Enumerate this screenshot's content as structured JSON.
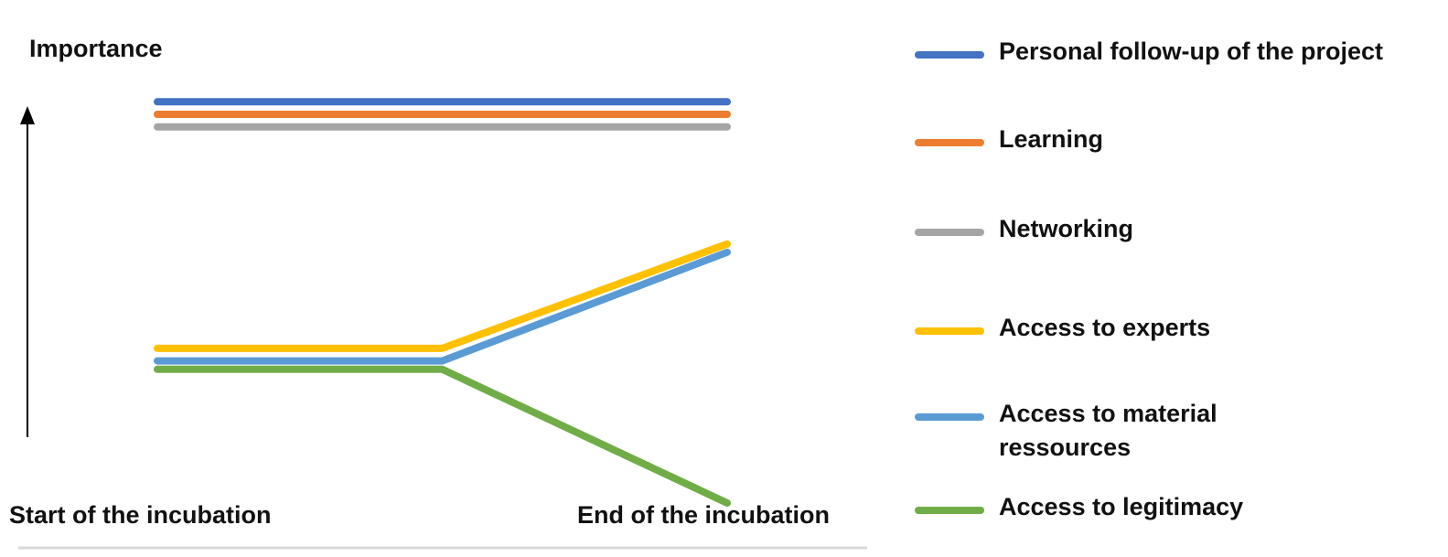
{
  "chart_data": {
    "type": "line",
    "title": "",
    "ylabel": "Importance",
    "x_start_label": "Start of the incubation",
    "x_end_label": "End of the incubation",
    "x": [
      0,
      0.5,
      1
    ],
    "ylim": [
      0,
      1
    ],
    "grid": false,
    "legend_position": "right",
    "series": [
      {
        "name": "Personal follow-up of the project",
        "color": "#4472C4",
        "values": [
          0.96,
          0.96,
          0.96
        ]
      },
      {
        "name": "Learning",
        "color": "#ED7D31",
        "values": [
          0.93,
          0.93,
          0.93
        ]
      },
      {
        "name": "Networking",
        "color": "#A5A5A5",
        "values": [
          0.9,
          0.9,
          0.9
        ]
      },
      {
        "name": "Access to experts",
        "color": "#FFC000",
        "values": [
          0.37,
          0.37,
          0.62
        ]
      },
      {
        "name": "Access to material\nressources",
        "color": "#5B9BD5",
        "values": [
          0.34,
          0.34,
          0.6
        ]
      },
      {
        "name": "Access to legitimacy",
        "color": "#70AD47",
        "values": [
          0.32,
          0.32,
          0.0
        ]
      }
    ]
  }
}
